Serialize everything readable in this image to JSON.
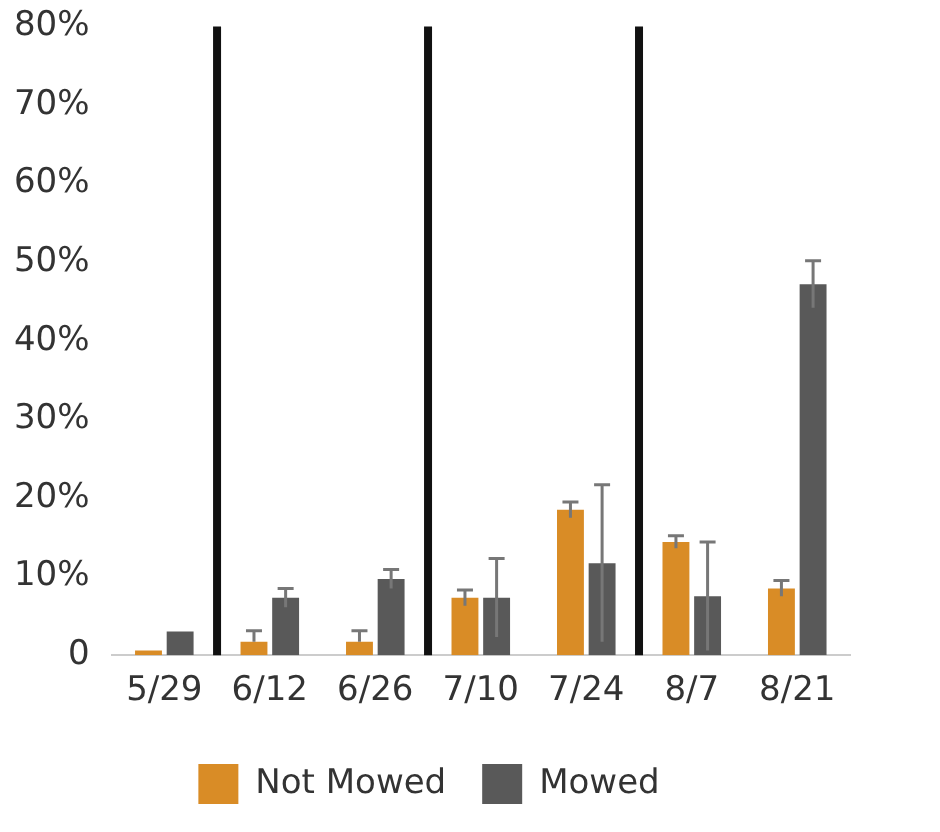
{
  "chart_data": {
    "type": "bar",
    "categories": [
      "5/29",
      "6/12",
      "6/26",
      "7/10",
      "7/24",
      "8/7",
      "8/21"
    ],
    "series": [
      {
        "name": "Not Mowed",
        "color": "#d98c26",
        "values": [
          0.6,
          1.7,
          1.7,
          7.3,
          18.5,
          14.4,
          8.5
        ],
        "errors": [
          null,
          [
            1.7,
            3.1
          ],
          [
            1.7,
            3.1
          ],
          1,
          1,
          0.8,
          1
        ]
      },
      {
        "name": "Mowed",
        "color": "#595959",
        "values": [
          3,
          7.3,
          9.7,
          7.3,
          11.7,
          7.5,
          47.2
        ],
        "errors": [
          null,
          1.2,
          1.2,
          5,
          10,
          6.9,
          3
        ]
      }
    ],
    "ylim": [
      0,
      80
    ],
    "yticks": [
      {
        "value": 0,
        "label": "0"
      },
      {
        "value": 10,
        "label": "10%"
      },
      {
        "value": 20,
        "label": "20%"
      },
      {
        "value": 30,
        "label": "30%"
      },
      {
        "value": 40,
        "label": "40%"
      },
      {
        "value": 50,
        "label": "50%"
      },
      {
        "value": 60,
        "label": "60%"
      },
      {
        "value": 70,
        "label": "70%"
      },
      {
        "value": 80,
        "label": "80%"
      }
    ],
    "grid": false,
    "legend": "bottom"
  }
}
